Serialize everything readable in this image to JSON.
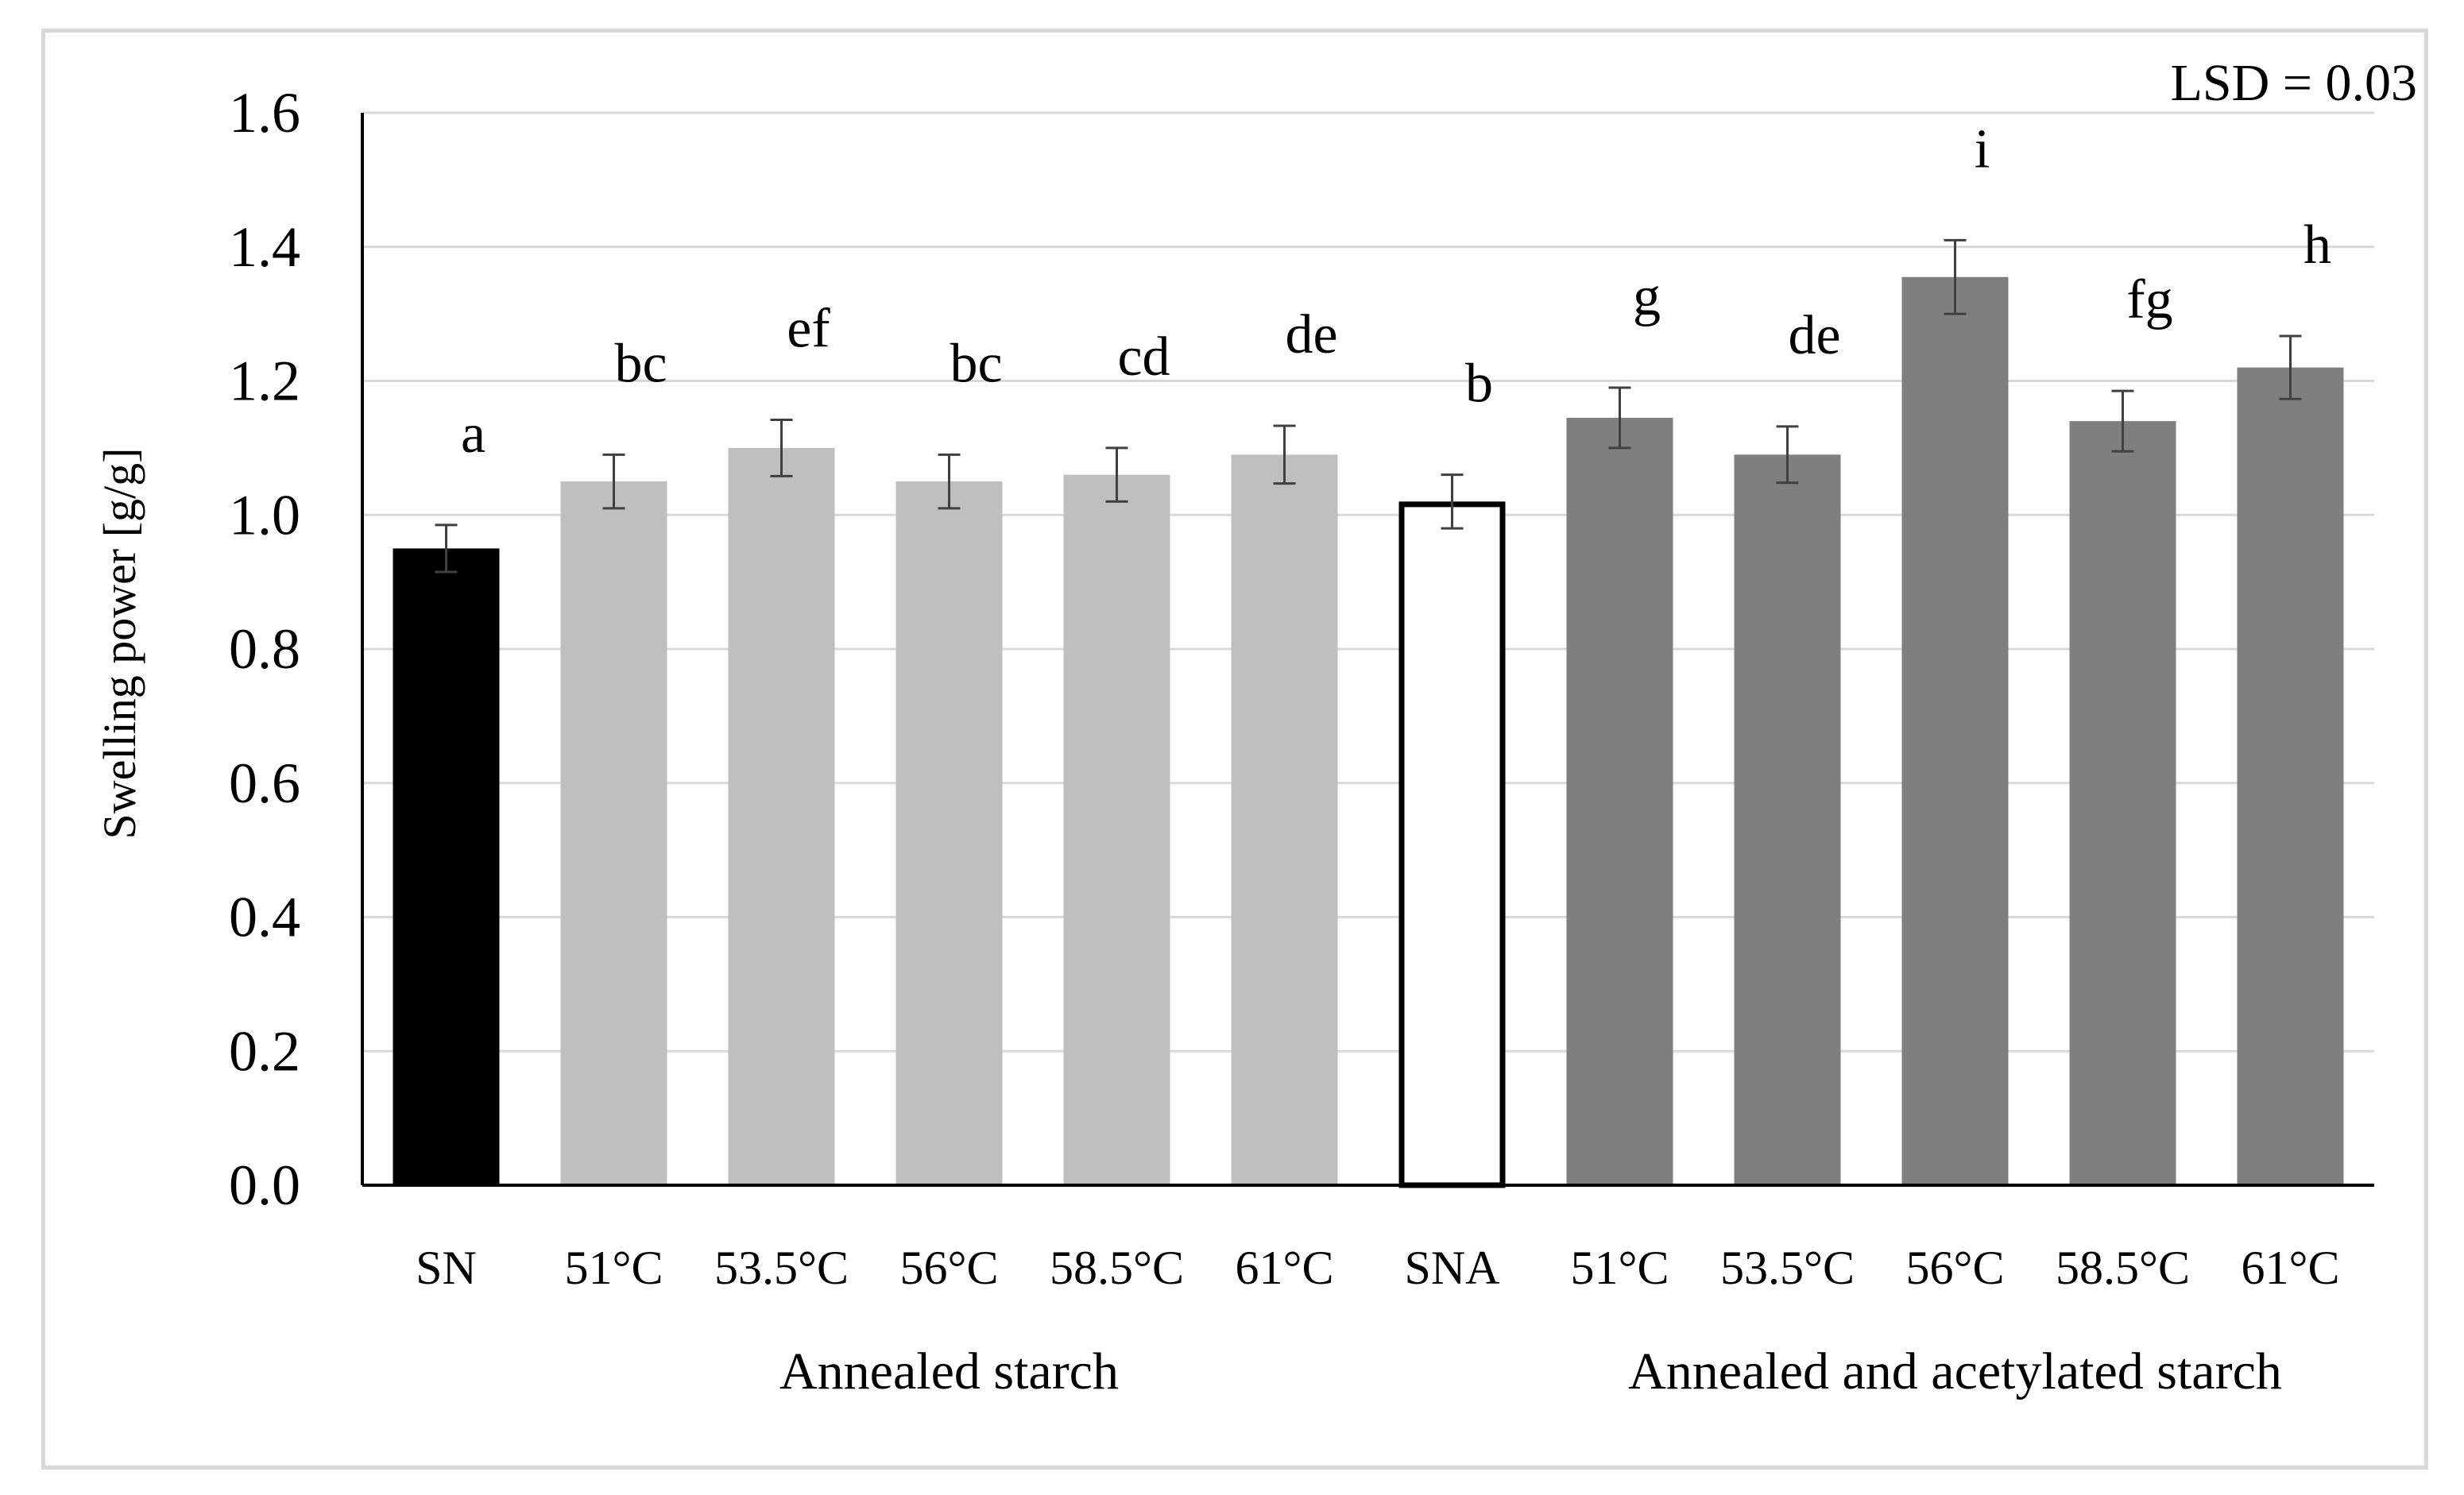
{
  "chart_data": {
    "type": "bar",
    "title": "",
    "annotation": "LSD = 0.03",
    "xlabel": "",
    "ylabel": "Swelling power [g/g]",
    "ylim": [
      0,
      1.6
    ],
    "ytick_values": [
      0.0,
      0.2,
      0.4,
      0.6,
      0.8,
      1.0,
      1.2,
      1.4,
      1.6
    ],
    "ytick_labels": [
      "0.0",
      "0.2",
      "0.4",
      "0.6",
      "0.8",
      "1.0",
      "1.2",
      "1.4",
      "1.6"
    ],
    "grid": true,
    "categories": [
      "SN",
      "51°C",
      "53.5°C",
      "56°C",
      "58.5°C",
      "61°C",
      "SNA",
      "51°C",
      "53.5°C",
      "56°C",
      "58.5°C",
      "61°C"
    ],
    "values": [
      0.95,
      1.05,
      1.1,
      1.05,
      1.06,
      1.09,
      1.02,
      1.145,
      1.09,
      1.355,
      1.14,
      1.22
    ],
    "errors": [
      0.035,
      0.04,
      0.042,
      0.04,
      0.04,
      0.043,
      0.04,
      0.045,
      0.042,
      0.055,
      0.045,
      0.047
    ],
    "significance_letters": [
      "a",
      "bc",
      "ef",
      "bc",
      "cd",
      "de",
      "b",
      "g",
      "de",
      "i",
      "fg",
      "h"
    ],
    "group_labels": [
      {
        "label": "Annealed starch",
        "from": 1,
        "to": 5
      },
      {
        "label": "Annealed and acetylated starch",
        "from": 7,
        "to": 11
      }
    ],
    "colors": {
      "native": "#000000",
      "annealed": "#bfbfbf",
      "acetylated_native_fill": "#ffffff",
      "acetylated_native_edge": "#000000",
      "annealed_acetylated": "#7f7f7f",
      "grid": "#d9d9d9",
      "axis": "#000000",
      "error_bar": "#404040"
    },
    "bar_styles": [
      "native",
      "annealed",
      "annealed",
      "annealed",
      "annealed",
      "annealed",
      "acetylated_native",
      "annealed_acetylated",
      "annealed_acetylated",
      "annealed_acetylated",
      "annealed_acetylated",
      "annealed_acetylated"
    ]
  }
}
